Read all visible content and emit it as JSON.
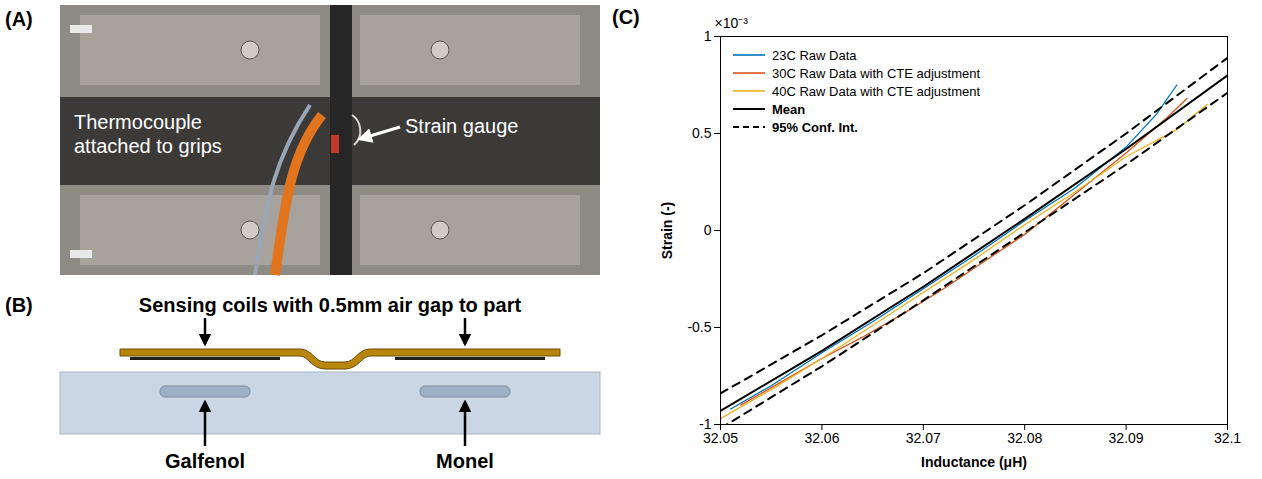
{
  "panels": [
    {
      "label": "(A)",
      "annotations": [
        "Thermocouple attached to grips",
        "Strain gauge"
      ]
    },
    {
      "label": "(B)",
      "title": "Sensing coils with 0.5mm air gap to part",
      "annotations": [
        "Galfenol",
        "Monel"
      ]
    },
    {
      "label": "(C)"
    }
  ],
  "chart_data": {
    "type": "line",
    "xlabel": "Inductance (μH)",
    "ylabel": "Strain (-)",
    "annotations": [
      "×10⁻³"
    ],
    "xlim": [
      32.05,
      32.1
    ],
    "xticks": [
      32.05,
      32.06,
      32.07,
      32.08,
      32.09,
      32.1
    ],
    "ylim": [
      -1,
      1
    ],
    "yticks": [
      -1,
      -0.5,
      0,
      0.5,
      1
    ],
    "grid": false,
    "legend": "top-left",
    "series": [
      {
        "name": "23C Raw Data",
        "color": "#0072bd",
        "x": [
          32.051,
          32.055,
          32.06,
          32.065,
          32.07,
          32.075,
          32.08,
          32.085,
          32.09,
          32.093,
          32.095
        ],
        "values": [
          -0.92,
          -0.8,
          -0.63,
          -0.47,
          -0.3,
          -0.13,
          0.05,
          0.22,
          0.43,
          0.6,
          0.75
        ]
      },
      {
        "name": "30C Raw Data with CTE adjustment",
        "color": "#d95319",
        "x": [
          32.052,
          32.056,
          32.06,
          32.064,
          32.068,
          32.072,
          32.076,
          32.08,
          32.085,
          32.09,
          32.094,
          32.096
        ],
        "values": [
          -0.9,
          -0.78,
          -0.66,
          -0.55,
          -0.43,
          -0.3,
          -0.16,
          -0.02,
          0.19,
          0.4,
          0.58,
          0.68
        ]
      },
      {
        "name": "40C Raw Data with CTE adjustment",
        "color": "#edb120",
        "x": [
          32.05,
          32.055,
          32.06,
          32.065,
          32.07,
          32.075,
          32.08,
          32.085,
          32.09,
          32.095,
          32.098
        ],
        "values": [
          -0.97,
          -0.82,
          -0.66,
          -0.49,
          -0.32,
          -0.15,
          0.03,
          0.2,
          0.38,
          0.52,
          0.65
        ]
      },
      {
        "name": "Mean",
        "color": "#000000",
        "line_style": "solid",
        "x": [
          32.05,
          32.06,
          32.07,
          32.08,
          32.09,
          32.1
        ],
        "values": [
          -0.93,
          -0.62,
          -0.29,
          0.06,
          0.42,
          0.8
        ]
      },
      {
        "name": "95% Conf. Int.",
        "color": "#000000",
        "line_style": "dashed",
        "x": [
          32.05,
          32.06,
          32.07,
          32.08,
          32.09,
          32.1
        ],
        "lower": [
          -1.02,
          -0.7,
          -0.36,
          -0.01,
          0.34,
          0.71
        ],
        "upper": [
          -0.84,
          -0.54,
          -0.22,
          0.13,
          0.5,
          0.89
        ]
      }
    ]
  }
}
